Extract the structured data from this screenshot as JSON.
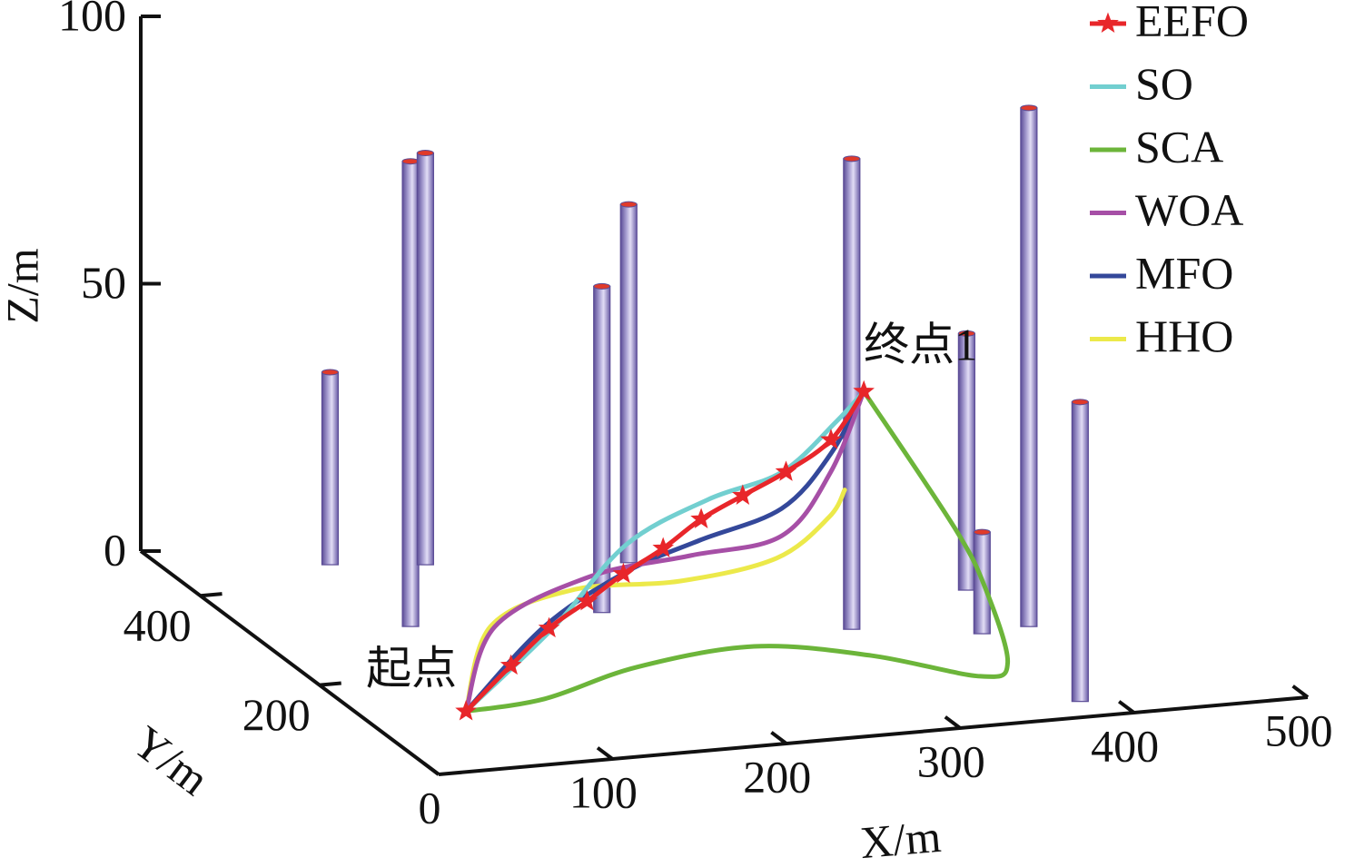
{
  "chart_data": {
    "type": "line3d",
    "xlabel": "X/m",
    "ylabel": "Y/m",
    "zlabel": "Z/m",
    "xlim": [
      0,
      500
    ],
    "ylim": [
      0,
      500
    ],
    "zlim": [
      0,
      100
    ],
    "xticks": [
      0,
      100,
      200,
      300,
      400,
      500
    ],
    "yticks": [
      200,
      400
    ],
    "zticks": [
      0,
      50,
      100
    ],
    "legend": "upper right",
    "annotations": [
      {
        "text": "起点",
        "x": 50,
        "y": 100,
        "z": 2
      },
      {
        "text": "终点1",
        "x": 320,
        "y": 220,
        "z": 44
      }
    ],
    "obstacles": {
      "color": "#9f97cc",
      "top_color": "#e03a2a",
      "x": [
        88,
        87,
        137,
        195,
        243,
        312,
        398,
        376,
        405,
        380
      ],
      "y": [
        439,
        301,
        422,
        295,
        390,
        217,
        275,
        185,
        191,
        32
      ],
      "height": [
        36,
        87,
        77,
        61,
        67,
        88,
        48,
        19,
        97,
        56
      ]
    },
    "series": [
      {
        "name": "EEFO",
        "color": "#e8262a",
        "marker": "star",
        "x": [
          50,
          80,
          106,
          132,
          157,
          184,
          210,
          238,
          267,
          297,
          320
        ],
        "y": [
          100,
          112,
          124,
          136,
          148,
          160,
          172,
          184,
          196,
          208,
          220
        ],
        "z": [
          2,
          8.7,
          13.9,
          17.2,
          20.6,
          23.6,
          27.3,
          29.9,
          32.5,
          36.6,
          44
        ]
      },
      {
        "name": "SO",
        "color": "#72cfd0",
        "x": [
          50,
          108,
          156,
          210,
          259,
          297,
          320
        ],
        "y": [
          100,
          120,
          140,
          160,
          180,
          200,
          220
        ],
        "z": [
          2,
          14.6,
          26.8,
          32,
          34,
          40.6,
          44
        ]
      },
      {
        "name": "SCA",
        "color": "#6cb53a",
        "x": [
          50,
          99,
          168,
          239,
          293,
          335,
          351,
          353,
          332,
          320
        ],
        "y": [
          100,
          111,
          158,
          168,
          129,
          68,
          69,
          111,
          103,
          220
        ],
        "z": [
          2,
          2,
          2,
          3,
          3,
          3,
          5,
          15,
          28,
          44
        ]
      },
      {
        "name": "WOA",
        "color": "#a64fa6",
        "x": [
          50,
          73.5,
          135,
          200,
          259,
          294,
          320
        ],
        "y": [
          100,
          120,
          140,
          160,
          180,
          200,
          220
        ],
        "z": [
          2,
          15.5,
          21.4,
          21.8,
          22.1,
          31.3,
          44
        ]
      },
      {
        "name": "MFO",
        "color": "#34489a",
        "x": [
          50,
          102,
          156,
          205,
          259,
          294,
          320
        ],
        "y": [
          100,
          120,
          140,
          160,
          180,
          200,
          220
        ],
        "z": [
          2,
          14.7,
          21.7,
          24.5,
          27.2,
          34.7,
          44
        ]
      },
      {
        "name": "HHO",
        "color": "#ece94a",
        "x": [
          50,
          71,
          125,
          194,
          256,
          293,
          309
        ],
        "y": [
          100,
          120,
          140,
          160,
          180,
          200,
          220
        ],
        "z": [
          2,
          15.6,
          19.2,
          17.2,
          18,
          22.9,
          25.9
        ]
      }
    ]
  }
}
